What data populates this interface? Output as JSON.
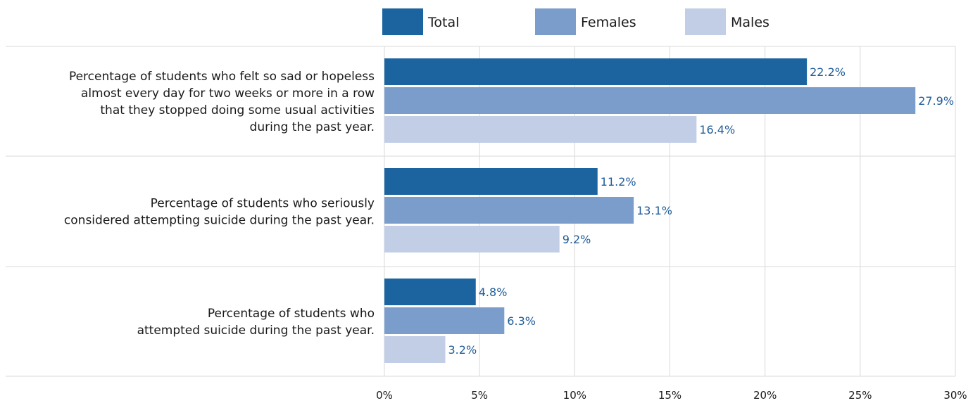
{
  "chart_data": {
    "type": "bar",
    "orientation": "horizontal",
    "categories": [
      [
        "Percentage of students who felt so sad or hopeless",
        "almost every day for two weeks or more in a row",
        "that they stopped doing some usual activities",
        "during the past year."
      ],
      [
        "Percentage of students who seriously",
        "considered attempting suicide during the past year."
      ],
      [
        "Percentage of students who",
        "attempted suicide during the past year."
      ]
    ],
    "series": [
      {
        "name": "Total",
        "color": "#1b64a0",
        "values": [
          22.2,
          11.2,
          4.8
        ],
        "labels": [
          "22.2%",
          "11.2%",
          "4.8%"
        ]
      },
      {
        "name": "Females",
        "color": "#7b9dcb",
        "values": [
          27.9,
          13.1,
          6.3
        ],
        "labels": [
          "27.9%",
          "13.1%",
          "6.3%"
        ]
      },
      {
        "name": "Males",
        "color": "#c2cde6",
        "values": [
          16.4,
          9.2,
          3.2
        ],
        "labels": [
          "16.4%",
          "9.2%",
          "3.2%"
        ]
      }
    ],
    "xlim": [
      0,
      30
    ],
    "x_ticks": [
      0,
      5,
      10,
      15,
      20,
      25,
      30
    ],
    "x_tick_labels": [
      "0%",
      "5%",
      "10%",
      "15%",
      "20%",
      "25%",
      "30%"
    ],
    "grid": true,
    "legend_position": "top-center",
    "title": "",
    "xlabel": "",
    "ylabel": ""
  }
}
